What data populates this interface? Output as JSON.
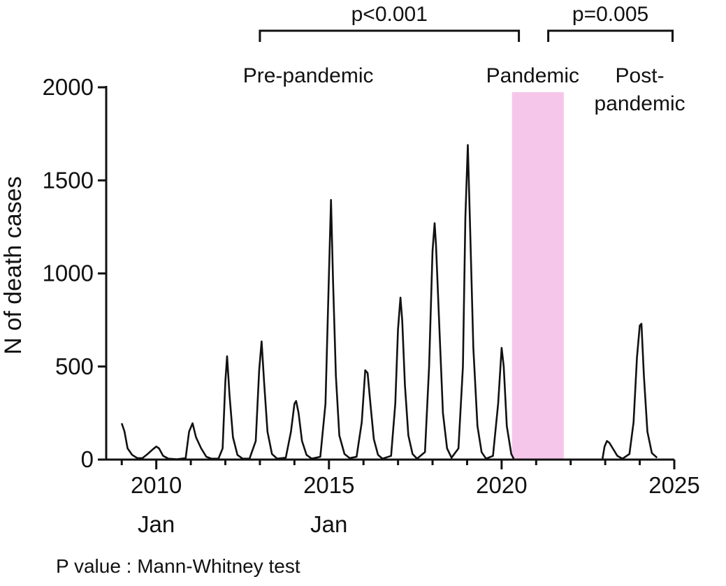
{
  "chart_data": {
    "type": "line",
    "title": "",
    "xlabel": "",
    "ylabel": "N of death cases",
    "ylim": [
      0,
      2000
    ],
    "y_ticks": [
      "0",
      "500",
      "1000",
      "1500",
      "2000"
    ],
    "xlim": [
      2008.55,
      2025.0
    ],
    "x_ticks": [
      {
        "value": 2010,
        "label": "2010"
      },
      {
        "value": 2015,
        "label": "2015"
      },
      {
        "value": 2020,
        "label": "2020"
      },
      {
        "value": 2025,
        "label": "2025"
      }
    ],
    "x_sub_labels": [
      {
        "value": 2010,
        "label": "Jan"
      },
      {
        "value": 2015,
        "label": "Jan"
      }
    ],
    "grid": false,
    "color": "#111111",
    "shaded_period": {
      "start": 2020.3,
      "end": 2021.8,
      "color": "#f6c6ea"
    },
    "period_labels": [
      {
        "label": "Pre-pandemic",
        "x": 2014.4
      },
      {
        "label": "Pandemic",
        "x": 2020.9
      },
      {
        "lines": [
          "Post-",
          "pandemic"
        ],
        "x": 2024.0
      }
    ],
    "comparisons": [
      {
        "label": "p<0.001",
        "start": 2013.0,
        "end": 2020.5
      },
      {
        "label": "p=0.005",
        "start": 2021.35,
        "end": 2024.95
      }
    ],
    "footnote": "P value : Mann-Whitney test",
    "series": [
      {
        "segments": [
          [
            [
              2009.0,
              195
            ],
            [
              2009.08,
              150
            ],
            [
              2009.17,
              60
            ],
            [
              2009.3,
              25
            ],
            [
              2009.45,
              8
            ],
            [
              2009.6,
              8
            ],
            [
              2009.75,
              30
            ],
            [
              2009.9,
              55
            ],
            [
              2010.0,
              70
            ],
            [
              2010.08,
              60
            ],
            [
              2010.2,
              20
            ],
            [
              2010.35,
              5
            ],
            [
              2010.6,
              2
            ],
            [
              2010.85,
              8
            ],
            [
              2010.95,
              150
            ],
            [
              2011.05,
              195
            ],
            [
              2011.15,
              120
            ],
            [
              2011.3,
              60
            ],
            [
              2011.45,
              15
            ],
            [
              2011.6,
              5
            ],
            [
              2011.8,
              5
            ],
            [
              2011.92,
              60
            ],
            [
              2012.0,
              420
            ],
            [
              2012.05,
              555
            ],
            [
              2012.12,
              350
            ],
            [
              2012.22,
              120
            ],
            [
              2012.35,
              25
            ],
            [
              2012.5,
              5
            ],
            [
              2012.7,
              5
            ],
            [
              2012.88,
              100
            ],
            [
              2012.98,
              480
            ],
            [
              2013.05,
              635
            ],
            [
              2013.12,
              420
            ],
            [
              2013.22,
              150
            ],
            [
              2013.35,
              30
            ],
            [
              2013.5,
              5
            ],
            [
              2013.75,
              10
            ],
            [
              2013.9,
              150
            ],
            [
              2014.0,
              300
            ],
            [
              2014.05,
              315
            ],
            [
              2014.12,
              250
            ],
            [
              2014.22,
              100
            ],
            [
              2014.35,
              25
            ],
            [
              2014.5,
              5
            ],
            [
              2014.75,
              15
            ],
            [
              2014.9,
              300
            ],
            [
              2015.0,
              1000
            ],
            [
              2015.06,
              1395
            ],
            [
              2015.12,
              950
            ],
            [
              2015.2,
              450
            ],
            [
              2015.3,
              130
            ],
            [
              2015.45,
              30
            ],
            [
              2015.6,
              8
            ],
            [
              2015.8,
              15
            ],
            [
              2015.95,
              200
            ],
            [
              2016.05,
              480
            ],
            [
              2016.12,
              465
            ],
            [
              2016.2,
              300
            ],
            [
              2016.3,
              110
            ],
            [
              2016.42,
              25
            ],
            [
              2016.55,
              5
            ],
            [
              2016.8,
              20
            ],
            [
              2016.92,
              300
            ],
            [
              2017.0,
              700
            ],
            [
              2017.07,
              870
            ],
            [
              2017.12,
              750
            ],
            [
              2017.2,
              400
            ],
            [
              2017.3,
              130
            ],
            [
              2017.42,
              30
            ],
            [
              2017.55,
              5
            ],
            [
              2017.78,
              40
            ],
            [
              2017.9,
              500
            ],
            [
              2018.0,
              1120
            ],
            [
              2018.06,
              1270
            ],
            [
              2018.1,
              1150
            ],
            [
              2018.2,
              700
            ],
            [
              2018.3,
              250
            ],
            [
              2018.42,
              60
            ],
            [
              2018.55,
              10
            ],
            [
              2018.75,
              60
            ],
            [
              2018.88,
              500
            ],
            [
              2018.95,
              1300
            ],
            [
              2019.02,
              1690
            ],
            [
              2019.08,
              1300
            ],
            [
              2019.18,
              600
            ],
            [
              2019.3,
              180
            ],
            [
              2019.42,
              40
            ],
            [
              2019.55,
              5
            ],
            [
              2019.75,
              20
            ],
            [
              2019.9,
              300
            ],
            [
              2020.0,
              600
            ],
            [
              2020.06,
              500
            ],
            [
              2020.15,
              180
            ],
            [
              2020.28,
              30
            ],
            [
              2020.35,
              5
            ]
          ],
          [
            [
              2022.92,
              3
            ],
            [
              2022.98,
              70
            ],
            [
              2023.05,
              100
            ],
            [
              2023.12,
              90
            ],
            [
              2023.22,
              60
            ],
            [
              2023.35,
              20
            ],
            [
              2023.5,
              5
            ],
            [
              2023.7,
              30
            ],
            [
              2023.82,
              200
            ],
            [
              2023.92,
              550
            ],
            [
              2024.0,
              720
            ],
            [
              2024.05,
              730
            ],
            [
              2024.12,
              450
            ],
            [
              2024.22,
              150
            ],
            [
              2024.35,
              35
            ],
            [
              2024.5,
              10
            ]
          ]
        ]
      }
    ]
  }
}
